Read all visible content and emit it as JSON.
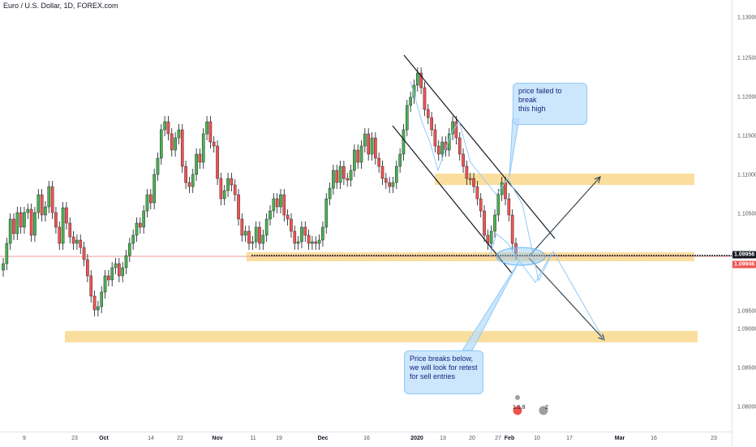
{
  "header": {
    "title": "Euro / U.S. Dollar, 1D, FOREX.com"
  },
  "y_axis": {
    "ticks": [
      "1.13000",
      "1.12500",
      "1.12000",
      "1.11500",
      "1.11000",
      "1.10500",
      "1.09956",
      "1.09946",
      "1.09500",
      "1.09000",
      "1.08500",
      "1.08000"
    ]
  },
  "price_tags": {
    "bid": "1.09956",
    "ask": "1.09946",
    "bid_color": "#131722",
    "ask_color": "#ef5350"
  },
  "x_axis": {
    "ticks": [
      "9",
      "23",
      "Oct",
      "14",
      "22",
      "Nov",
      "11",
      "19",
      "Dec",
      "16",
      "2020",
      "13",
      "20",
      "27",
      "Feb",
      "10",
      "17",
      "Mar",
      "16",
      "23"
    ]
  },
  "annotations": {
    "top_callout": "price failed to break\nthis high",
    "bottom_callout": "Price breaks below,\nwe will look for retest\nfor sell entries"
  },
  "markers": {
    "events": "1.5.8",
    "count": "2"
  },
  "colors": {
    "bull": "#26a69a",
    "bull_candle": "#4caf50",
    "bear": "#ef5350",
    "zone": "#f5c24d",
    "channel": "#131722",
    "arrow": "#37474f",
    "projection": "#90caf9"
  }
}
